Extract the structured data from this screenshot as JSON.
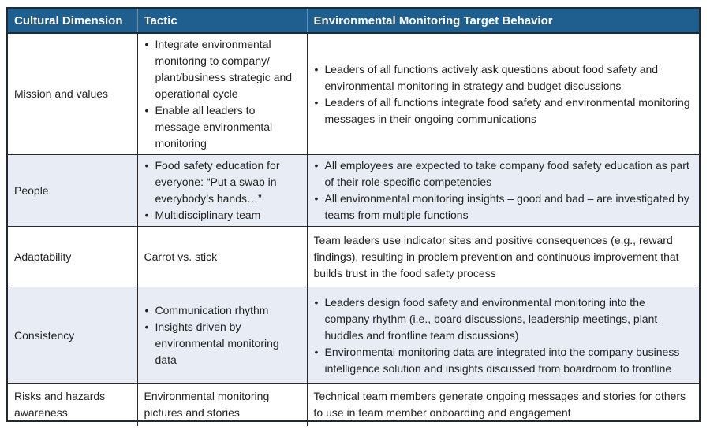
{
  "headers": [
    "Cultural Dimension",
    "Tactic",
    "Environmental Monitoring Target Behavior"
  ],
  "rows": [
    {
      "dimension": "Mission and values",
      "tactic": [
        "Integrate environmental monitoring to company/ plant/business strategic and operational cycle",
        "Enable all leaders to message environmental monitoring"
      ],
      "behavior": [
        "Leaders of all functions actively ask questions about food safety and environmental monitoring in strategy and budget discussions",
        "Leaders of all functions integrate food safety and environmental monitoring messages in their ongoing communications"
      ]
    },
    {
      "dimension": "People",
      "tactic": [
        "Food safety education for everyone: “Put a swab in everybody’s hands…”",
        "Multidisciplinary team"
      ],
      "behavior": [
        "All employees are expected to take company food safety education as part of their role-specific competencies",
        "All environmental monitoring insights – good and bad – are investigated by teams from multiple functions"
      ]
    },
    {
      "dimension": "Adaptability",
      "tactic": "Carrot vs. stick",
      "behavior": "Team leaders use indicator sites and positive consequences (e.g., reward findings), resulting in problem prevention and continuous improvement that builds trust in the food safety process"
    },
    {
      "dimension": "Consistency",
      "tactic": [
        "Communication rhythm",
        "Insights driven by environmental monitoring data"
      ],
      "behavior": [
        "Leaders design food safety and environmental monitoring into the company rhythm (i.e., board discussions, leadership meetings, plant huddles and frontline team discussions)",
        "Environmental monitoring data are integrated into the company business intelligence solution and insights discussed from boardroom to frontline"
      ]
    },
    {
      "dimension": "Risks and hazards awareness",
      "tactic": "Environmental monitoring pictures and stories",
      "behavior": "Technical team members generate ongoing messages and stories for others to use in team member onboarding and engagement"
    }
  ]
}
